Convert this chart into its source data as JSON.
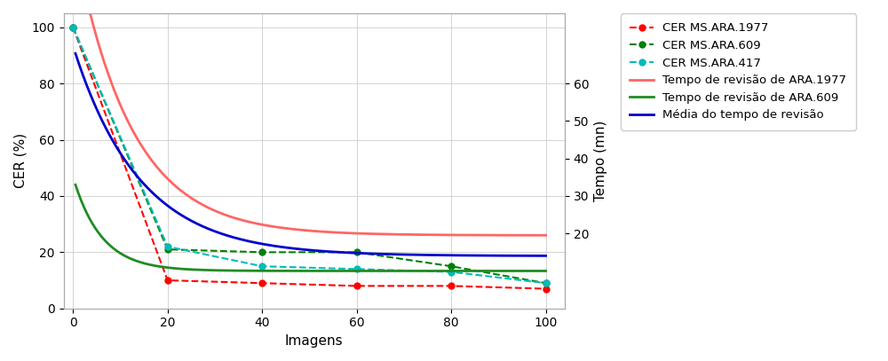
{
  "x_cer": [
    0,
    20,
    40,
    60,
    80,
    100
  ],
  "cer_1977": [
    100,
    10,
    9,
    8,
    8,
    7
  ],
  "cer_609": [
    100,
    21,
    20,
    20,
    15,
    9
  ],
  "cer_417": [
    100,
    22,
    15,
    14,
    13,
    9
  ],
  "ylabel_left": "CER (%)",
  "ylabel_right": "Tempo (mn)",
  "xlabel": "Imagens",
  "ylim_left": [
    0,
    105
  ],
  "ylim_right": [
    0,
    78.75
  ],
  "xlim_left": -2,
  "xlim_right": 104,
  "xticks": [
    0,
    20,
    40,
    60,
    80,
    100
  ],
  "yticks_left": [
    0,
    20,
    40,
    60,
    80,
    100
  ],
  "yticks_right": [
    20,
    30,
    40,
    50,
    60
  ],
  "color_1977_cer": "#FF0000",
  "color_609_cer": "#008000",
  "color_417_cer": "#00BBBB",
  "color_tempo_1977": "#FF6666",
  "color_tempo_609": "#228B22",
  "color_tempo_media": "#0000CC",
  "legend_labels": [
    "CER MS.ARA.1977",
    "CER MS.ARA.609",
    "CER MS.ARA.417",
    "Tempo de revisão de ARA.1977",
    "Tempo de revisão de ARA.609",
    "Média do tempo de revisão"
  ],
  "tempo_1977_params": {
    "asymptote": 19.5,
    "scale": 80,
    "decay": 12
  },
  "tempo_609_params": {
    "asymptote": 10.0,
    "scale": 25,
    "decay": 6
  },
  "tempo_media_params": {
    "asymptote": 14.0,
    "scale": 56,
    "decay": 14
  }
}
